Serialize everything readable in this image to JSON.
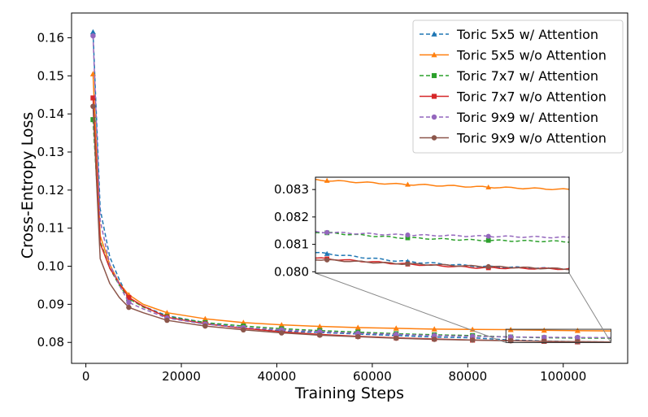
{
  "chart_data": {
    "type": "line",
    "xlabel": "Training Steps",
    "ylabel": "Cross-Entropy Loss",
    "xlim": [
      -3000,
      113500
    ],
    "ylim": [
      0.0745,
      0.1665
    ],
    "xticks": [
      0,
      20000,
      40000,
      60000,
      80000,
      100000
    ],
    "xtick_labels": [
      "0",
      "20000",
      "40000",
      "60000",
      "80000",
      "100000"
    ],
    "yticks": [
      0.08,
      0.09,
      0.1,
      0.11,
      0.12,
      0.13,
      0.14,
      0.15,
      0.16
    ],
    "ytick_labels": [
      "0.08",
      "0.09",
      "0.10",
      "0.11",
      "0.12",
      "0.13",
      "0.14",
      "0.15",
      "0.16"
    ],
    "legend_position": "top-right",
    "inset": {
      "xlim": [
        88000,
        110000
      ],
      "ylim": [
        0.07995,
        0.08345
      ],
      "yticks": [
        0.08,
        0.081,
        0.082,
        0.083
      ],
      "ytick_labels": [
        "0.080",
        "0.081",
        "0.082",
        "0.083"
      ]
    },
    "series": [
      {
        "name": "Toric 5x5 w/ Attention",
        "color": "#1f77b4",
        "dashed": true,
        "marker": "triangle",
        "x": [
          1500,
          3000,
          5000,
          7000,
          9000,
          12000,
          17000,
          25000,
          33000,
          41000,
          49000,
          57000,
          65000,
          73000,
          81000,
          88000,
          95000,
          102000,
          110000
        ],
        "y": [
          0.1615,
          0.115,
          0.1025,
          0.0965,
          0.0915,
          0.0895,
          0.087,
          0.0852,
          0.0838,
          0.083,
          0.0826,
          0.0822,
          0.0818,
          0.0814,
          0.0812,
          0.0807,
          0.0804,
          0.0802,
          0.0801
        ],
        "marker_x": [
          1500,
          9000,
          17000,
          25000,
          33000,
          41000,
          49000,
          57000,
          65000,
          73000,
          81000,
          89000,
          96000,
          103000
        ],
        "inset_marker_x": [
          89000,
          96000,
          103000
        ]
      },
      {
        "name": "Toric 5x5 w/o Attention",
        "color": "#ff7f0e",
        "dashed": false,
        "marker": "triangle",
        "x": [
          1500,
          3000,
          5000,
          7000,
          9000,
          12000,
          17000,
          25000,
          33000,
          41000,
          49000,
          57000,
          65000,
          73000,
          81000,
          88000,
          95000,
          102000,
          110000
        ],
        "y": [
          0.1505,
          0.108,
          0.1005,
          0.0955,
          0.0925,
          0.09,
          0.0878,
          0.0862,
          0.0852,
          0.0846,
          0.0842,
          0.0839,
          0.0837,
          0.0835,
          0.0834,
          0.08335,
          0.0832,
          0.0831,
          0.083
        ],
        "marker_x": [
          1500,
          9000,
          17000,
          25000,
          33000,
          41000,
          49000,
          57000,
          65000,
          73000,
          81000,
          89000,
          96000,
          103000
        ],
        "inset_marker_x": [
          89000,
          96000,
          103000
        ]
      },
      {
        "name": "Toric 7x7 w/ Attention",
        "color": "#2ca02c",
        "dashed": true,
        "marker": "square",
        "x": [
          1500,
          3000,
          5000,
          7000,
          9000,
          12000,
          17000,
          25000,
          33000,
          41000,
          49000,
          57000,
          65000,
          73000,
          81000,
          88000,
          95000,
          102000,
          110000
        ],
        "y": [
          0.1385,
          0.1065,
          0.0995,
          0.095,
          0.0915,
          0.0893,
          0.0868,
          0.0852,
          0.0843,
          0.0836,
          0.0831,
          0.0827,
          0.0823,
          0.082,
          0.0818,
          0.08145,
          0.08125,
          0.08115,
          0.0811
        ],
        "marker_x": [
          1500,
          9000,
          17000,
          25000,
          33000,
          41000,
          49000,
          57000,
          65000,
          73000,
          81000,
          89000,
          96000,
          103000
        ],
        "inset_marker_x": [
          89000,
          96000,
          103000
        ]
      },
      {
        "name": "Toric 7x7 w/o Attention",
        "color": "#d62728",
        "dashed": false,
        "marker": "square",
        "x": [
          1500,
          3000,
          5000,
          7000,
          9000,
          12000,
          17000,
          25000,
          33000,
          41000,
          49000,
          57000,
          65000,
          73000,
          81000,
          88000,
          95000,
          102000,
          110000
        ],
        "y": [
          0.1442,
          0.106,
          0.0995,
          0.0955,
          0.0918,
          0.0895,
          0.0866,
          0.0849,
          0.0837,
          0.0828,
          0.0821,
          0.0816,
          0.0812,
          0.0809,
          0.0806,
          0.0805,
          0.0803,
          0.08015,
          0.0801
        ],
        "marker_x": [
          1500,
          9000,
          17000,
          25000,
          33000,
          41000,
          49000,
          57000,
          65000,
          73000,
          81000,
          89000,
          96000,
          103000
        ],
        "inset_marker_x": [
          89000,
          96000,
          103000
        ]
      },
      {
        "name": "Toric 9x9 w/ Attention",
        "color": "#9467bd",
        "dashed": true,
        "marker": "circle",
        "x": [
          1500,
          3000,
          5000,
          7000,
          9000,
          12000,
          17000,
          25000,
          33000,
          41000,
          49000,
          57000,
          65000,
          73000,
          81000,
          88000,
          95000,
          102000,
          110000
        ],
        "y": [
          0.1605,
          0.112,
          0.1005,
          0.095,
          0.0905,
          0.0888,
          0.0864,
          0.0848,
          0.0839,
          0.0833,
          0.0828,
          0.0824,
          0.0821,
          0.0818,
          0.0816,
          0.08145,
          0.08135,
          0.0813,
          0.08125
        ],
        "marker_x": [
          1500,
          9000,
          17000,
          25000,
          33000,
          41000,
          49000,
          57000,
          65000,
          73000,
          81000,
          89000,
          96000,
          103000
        ],
        "inset_marker_x": [
          89000,
          96000,
          103000
        ]
      },
      {
        "name": "Toric 9x9 w/o Attention",
        "color": "#8c564b",
        "dashed": false,
        "marker": "circle",
        "x": [
          1500,
          3000,
          5000,
          7000,
          9000,
          12000,
          17000,
          25000,
          33000,
          41000,
          49000,
          57000,
          65000,
          73000,
          81000,
          88000,
          95000,
          102000,
          110000
        ],
        "y": [
          0.142,
          0.102,
          0.0955,
          0.0918,
          0.0892,
          0.0878,
          0.0858,
          0.0843,
          0.0833,
          0.0825,
          0.0819,
          0.0815,
          0.0811,
          0.0808,
          0.0806,
          0.08045,
          0.0803,
          0.0802,
          0.0801
        ],
        "marker_x": [
          1500,
          9000,
          17000,
          25000,
          33000,
          41000,
          49000,
          57000,
          65000,
          73000,
          81000,
          89000,
          96000,
          103000
        ],
        "inset_marker_x": [
          89000,
          96000,
          103000
        ]
      }
    ]
  }
}
